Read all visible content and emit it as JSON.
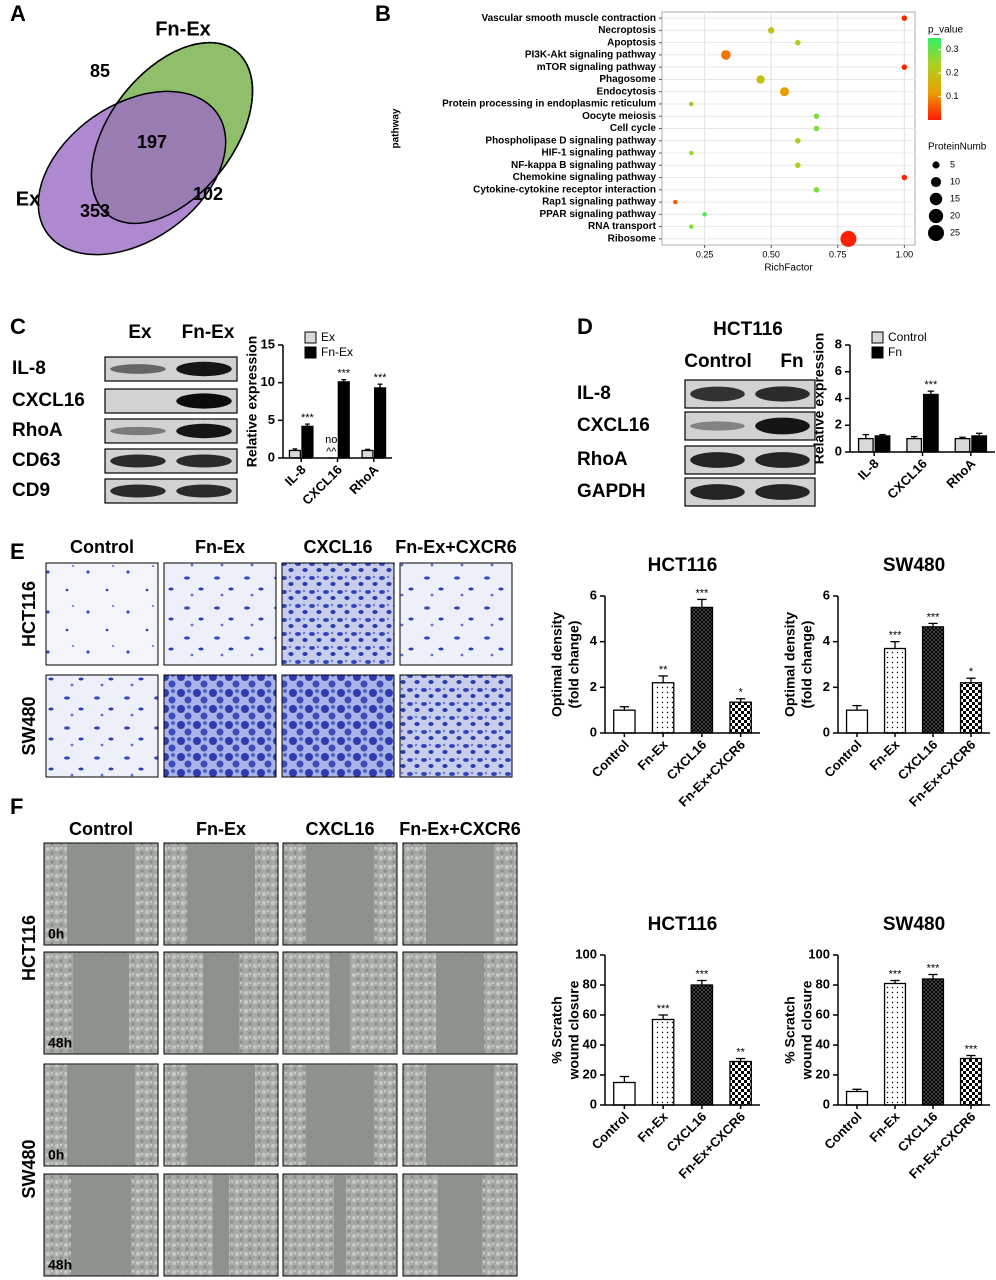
{
  "panel_labels": [
    "A",
    "B",
    "C",
    "D",
    "E",
    "F"
  ],
  "venn": {
    "set_labels": [
      "Fn-Ex",
      "Ex"
    ],
    "counts": [
      85,
      197,
      102,
      353
    ]
  },
  "blot_c": {
    "columns": [
      "Ex",
      "Fn-Ex"
    ],
    "rows": [
      "IL-8",
      "CXCL16",
      "RhoA",
      "CD63",
      "CD9"
    ]
  },
  "blot_d": {
    "title": "HCT116",
    "columns": [
      "Control",
      "Fn"
    ],
    "rows": [
      "IL-8",
      "CXCL16",
      "RhoA",
      "GAPDH"
    ]
  },
  "transwell": {
    "columns": [
      "Control",
      "Fn-Ex",
      "CXCL16",
      "Fn-Ex+CXCR6"
    ],
    "rows": [
      "HCT116",
      "SW480"
    ]
  },
  "scratch": {
    "columns": [
      "Control",
      "Fn-Ex",
      "CXCL16",
      "Fn-Ex+CXCR6"
    ],
    "rows": [
      "HCT116",
      "SW480"
    ],
    "time_labels": [
      "0h",
      "48h",
      "0h",
      "48h"
    ]
  },
  "chart_data": [
    {
      "type": "dot",
      "ylabel": "pathway",
      "xlabel": "RichFactor",
      "categories": [
        "Vascular smooth muscle contraction",
        "Necroptosis",
        "Apoptosis",
        "PI3K-Akt signaling pathway",
        "mTOR signaling pathway",
        "Phagosome",
        "Endocytosis",
        "Protein processing in endoplasmic reticulum",
        "Oocyte meiosis",
        "Cell cycle",
        "Phospholipase D signaling pathway",
        "HIF-1 signaling pathway",
        "NF-kappa B signaling pathway",
        "Chemokine signaling pathway",
        "Cytokine-cytokine receptor interaction",
        "Rap1 signaling pathway",
        "PPAR signaling pathway",
        "RNA transport",
        "Ribosome"
      ],
      "values": [
        1.0,
        0.5,
        0.6,
        0.33,
        1.0,
        0.46,
        0.55,
        0.2,
        0.67,
        0.67,
        0.6,
        0.2,
        0.6,
        1.0,
        0.67,
        0.14,
        0.25,
        0.2,
        0.79
      ],
      "p_values": [
        0.01,
        0.2,
        0.22,
        0.08,
        0.01,
        0.2,
        0.12,
        0.25,
        0.28,
        0.28,
        0.22,
        0.25,
        0.22,
        0.01,
        0.28,
        0.06,
        0.32,
        0.28,
        0.005
      ],
      "sizes": [
        3,
        4,
        3,
        9,
        3,
        7,
        8,
        2,
        3,
        3,
        3,
        2,
        3,
        3,
        3,
        2,
        2,
        2,
        25
      ],
      "xlim": [
        0.09,
        1.04
      ],
      "xticks": [
        {
          "value": 0.25,
          "label": "0.25"
        },
        {
          "value": 0.5,
          "label": "0.50"
        },
        {
          "value": 0.75,
          "label": "0.75"
        },
        {
          "value": 1.0,
          "label": "1.00"
        }
      ],
      "grid": true,
      "color_title": "p_value",
      "colorbar_lim": [
        0,
        0.35
      ],
      "colorbar_ticks": [
        0.1,
        0.2,
        0.3
      ],
      "colormap": [
        "#ff1a00",
        "#e8a000",
        "#b0d020",
        "#33ee66"
      ],
      "size_title": "ProteinNumb",
      "size_ticks": [
        5,
        10,
        15,
        20,
        25
      ]
    },
    {
      "type": "bar",
      "ylabel": [
        "Relative expression"
      ],
      "categories": [
        "IL-8",
        "CXCL16",
        "RhoA"
      ],
      "series": [
        {
          "name": "Ex",
          "color": "#d9d9d9",
          "values": [
            1.0,
            0,
            1.0
          ],
          "errors": [
            0.2,
            0,
            0.15
          ],
          "annotations": [
            [],
            [
              "no",
              "^^"
            ],
            []
          ]
        },
        {
          "name": "Fn-Ex",
          "color": "#000000",
          "values": [
            4.2,
            10.1,
            9.3
          ],
          "errors": [
            0.3,
            0.3,
            0.5
          ],
          "annotations": [
            [
              "***"
            ],
            [
              "***"
            ],
            [
              "***"
            ]
          ]
        }
      ],
      "ylim": [
        0,
        15
      ],
      "yticks": [
        0,
        5,
        10,
        15
      ]
    },
    {
      "type": "bar",
      "ylabel": [
        "Relative expression"
      ],
      "categories": [
        "IL-8",
        "CXCL16",
        "RhoA"
      ],
      "series": [
        {
          "name": "Control",
          "color": "#d9d9d9",
          "values": [
            1.0,
            1.0,
            1.0
          ],
          "errors": [
            0.3,
            0.15,
            0.1
          ],
          "annotations": [
            [],
            [],
            []
          ]
        },
        {
          "name": "Fn",
          "color": "#000000",
          "values": [
            1.2,
            4.3,
            1.2
          ],
          "errors": [
            0.1,
            0.25,
            0.2
          ],
          "annotations": [
            [],
            [
              "***"
            ],
            []
          ]
        }
      ],
      "ylim": [
        0,
        8
      ],
      "yticks": [
        0,
        2,
        4,
        6,
        8
      ]
    },
    {
      "type": "bar",
      "title": "HCT116",
      "ylabel": [
        "Optimal density",
        "(fold change)"
      ],
      "categories": [
        "Control",
        "Fn-Ex",
        "CXCL16",
        "Fn-Ex+CXCR6"
      ],
      "values": [
        1.0,
        2.2,
        5.5,
        1.35
      ],
      "errors": [
        0.15,
        0.3,
        0.35,
        0.15
      ],
      "annotations": [
        [],
        [
          "**"
        ],
        [
          "***"
        ],
        [
          "*"
        ]
      ],
      "color": "#000000",
      "ylim": [
        0,
        6
      ],
      "yticks": [
        0,
        2,
        4,
        6
      ]
    },
    {
      "type": "bar",
      "title": "SW480",
      "ylabel": [
        "Optimal density",
        "(fold change)"
      ],
      "categories": [
        "Control",
        "Fn-Ex",
        "CXCL16",
        "Fn-Ex+CXCR6"
      ],
      "values": [
        1.0,
        3.7,
        4.65,
        2.2
      ],
      "errors": [
        0.2,
        0.3,
        0.15,
        0.2
      ],
      "annotations": [
        [],
        [
          "***"
        ],
        [
          "***"
        ],
        [
          "*"
        ]
      ],
      "color": "#000000",
      "ylim": [
        0,
        6
      ],
      "yticks": [
        0,
        2,
        4,
        6
      ]
    },
    {
      "type": "bar",
      "title": "HCT116",
      "ylabel": [
        "% Scratch",
        "wound closure"
      ],
      "categories": [
        "Control",
        "Fn-Ex",
        "CXCL16",
        "Fn-Ex+CXCR6"
      ],
      "values": [
        15,
        57,
        80,
        29
      ],
      "errors": [
        4,
        3,
        3,
        2
      ],
      "annotations": [
        [],
        [
          "***"
        ],
        [
          "***"
        ],
        [
          "**"
        ]
      ],
      "color": "#000000",
      "ylim": [
        0,
        100
      ],
      "yticks": [
        0,
        20,
        40,
        60,
        80,
        100
      ]
    },
    {
      "type": "bar",
      "title": "SW480",
      "ylabel": [
        "% Scratch",
        "wound closure"
      ],
      "categories": [
        "Control",
        "Fn-Ex",
        "CXCL16",
        "Fn-Ex+CXCR6"
      ],
      "values": [
        9,
        81,
        84,
        31
      ],
      "errors": [
        1.5,
        2,
        3,
        2
      ],
      "annotations": [
        [],
        [
          "***"
        ],
        [
          "***"
        ],
        [
          "***"
        ]
      ],
      "color": "#000000",
      "ylim": [
        0,
        100
      ],
      "yticks": [
        0,
        20,
        40,
        60,
        80,
        100
      ]
    }
  ]
}
